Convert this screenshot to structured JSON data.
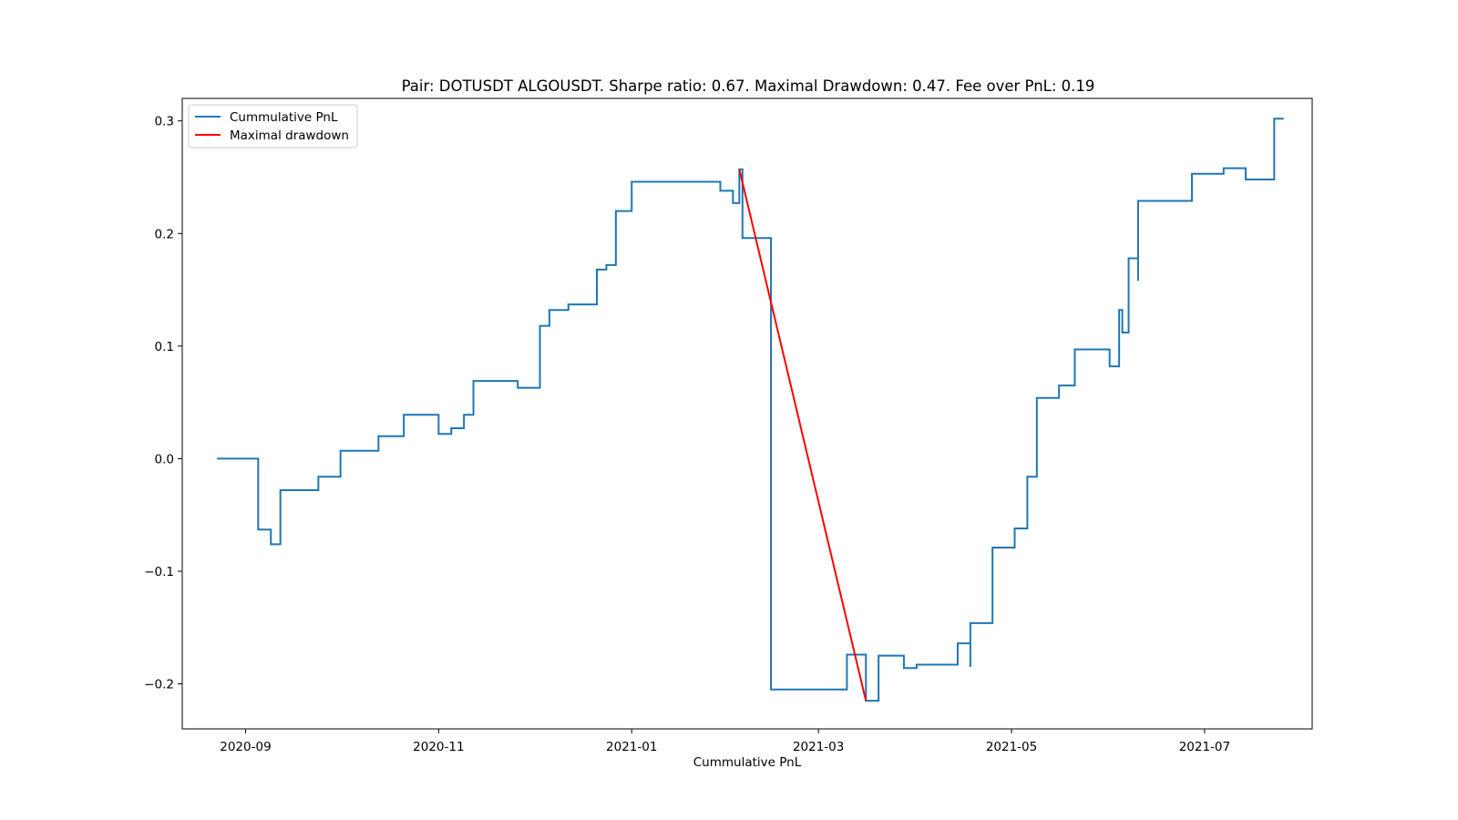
{
  "chart_data": {
    "type": "line",
    "title": "Pair: DOTUSDT ALGOUSDT. Sharpe ratio: 0.67. Maximal Drawdown: 0.47. Fee over PnL: 0.19",
    "xlabel": "Cummulative PnL",
    "ylabel": "",
    "xlim": [
      "2020-08-12",
      "2021-08-04"
    ],
    "ylim": [
      -0.24,
      0.32
    ],
    "xticks": [
      "2020-09-01",
      "2020-11-01",
      "2021-01-01",
      "2021-03-01",
      "2021-05-01",
      "2021-07-01"
    ],
    "xtick_labels": [
      "2020-09",
      "2020-11",
      "2021-01",
      "2021-03",
      "2021-05",
      "2021-07"
    ],
    "yticks": [
      -0.2,
      -0.1,
      0.0,
      0.1,
      0.2,
      0.3
    ],
    "ytick_labels": [
      "−0.2",
      "−0.1",
      "0.0",
      "0.1",
      "0.2",
      "0.3"
    ],
    "grid": false,
    "legend_position": "top-left",
    "series": [
      {
        "name": "Cummulative PnL",
        "color": "#1f77b4",
        "step": true,
        "points": [
          [
            "2020-08-23",
            0.0
          ],
          [
            "2020-09-05",
            -0.063
          ],
          [
            "2020-09-09",
            -0.076
          ],
          [
            "2020-09-12",
            -0.028
          ],
          [
            "2020-09-24",
            -0.016
          ],
          [
            "2020-10-01",
            0.007
          ],
          [
            "2020-10-13",
            0.02
          ],
          [
            "2020-10-21",
            0.039
          ],
          [
            "2020-11-01",
            0.022
          ],
          [
            "2020-11-05",
            0.027
          ],
          [
            "2020-11-09",
            0.039
          ],
          [
            "2020-11-12",
            0.069
          ],
          [
            "2020-11-26",
            0.063
          ],
          [
            "2020-12-03",
            0.118
          ],
          [
            "2020-12-06",
            0.132
          ],
          [
            "2020-12-12",
            0.137
          ],
          [
            "2020-12-21",
            0.168
          ],
          [
            "2020-12-24",
            0.172
          ],
          [
            "2020-12-27",
            0.22
          ],
          [
            "2021-01-01",
            0.246
          ],
          [
            "2021-01-29",
            0.238
          ],
          [
            "2021-02-02",
            0.227
          ],
          [
            "2021-02-04",
            0.257
          ],
          [
            "2021-02-05",
            0.196
          ],
          [
            "2021-02-14",
            -0.205
          ],
          [
            "2021-03-10",
            -0.174
          ],
          [
            "2021-03-16",
            -0.215
          ],
          [
            "2021-03-20",
            -0.175
          ],
          [
            "2021-03-28",
            -0.186
          ],
          [
            "2021-04-01",
            -0.183
          ],
          [
            "2021-04-14",
            -0.164
          ],
          [
            "2021-04-18",
            -0.185
          ],
          [
            "2021-04-18",
            -0.146
          ],
          [
            "2021-04-25",
            -0.079
          ],
          [
            "2021-05-02",
            -0.062
          ],
          [
            "2021-05-06",
            -0.016
          ],
          [
            "2021-05-09",
            0.054
          ],
          [
            "2021-05-16",
            0.065
          ],
          [
            "2021-05-21",
            0.097
          ],
          [
            "2021-06-01",
            0.082
          ],
          [
            "2021-06-04",
            0.132
          ],
          [
            "2021-06-05",
            0.112
          ],
          [
            "2021-06-07",
            0.178
          ],
          [
            "2021-06-10",
            0.158
          ],
          [
            "2021-06-10",
            0.229
          ],
          [
            "2021-06-27",
            0.253
          ],
          [
            "2021-07-07",
            0.258
          ],
          [
            "2021-07-14",
            0.248
          ],
          [
            "2021-07-23",
            0.302
          ],
          [
            "2021-07-26",
            0.302
          ]
        ]
      },
      {
        "name": "Maximal drawdown",
        "color": "#ff0000",
        "step": false,
        "points": [
          [
            "2021-02-04",
            0.257
          ],
          [
            "2021-03-16",
            -0.215
          ]
        ]
      }
    ]
  }
}
